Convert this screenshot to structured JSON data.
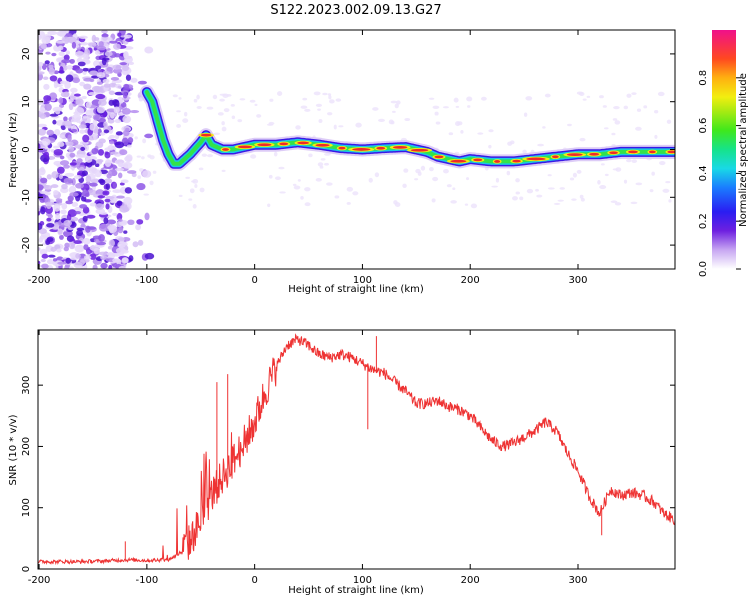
{
  "title": "S122.2023.002.09.13.G27",
  "chart_data": [
    {
      "type": "heatmap",
      "xlabel": "Height of straight line (km)",
      "ylabel": "Frequency (Hz)",
      "xlim": [
        -201,
        390
      ],
      "ylim": [
        -25,
        25
      ],
      "xticks": [
        -200,
        -100,
        0,
        100,
        200,
        300
      ],
      "yticks": [
        -20,
        -10,
        0,
        10,
        20
      ],
      "colorbar": {
        "label": "Normalized spectral amplitude",
        "range": [
          0,
          1
        ],
        "ticks": [
          "0.0",
          "0.2",
          "0.4",
          "0.6",
          "0.8"
        ],
        "tick_values": [
          0,
          0.2,
          0.4,
          0.6,
          0.8
        ]
      },
      "ridge": {
        "x": [
          -100,
          -95,
          -90,
          -85,
          -80,
          -75,
          -70,
          -60,
          -50,
          -45,
          -40,
          -30,
          -20,
          -10,
          0,
          20,
          40,
          60,
          80,
          100,
          120,
          140,
          150,
          160,
          170,
          180,
          190,
          200,
          220,
          240,
          260,
          280,
          300,
          320,
          340,
          360,
          380,
          390
        ],
        "y": [
          12,
          10,
          6,
          2,
          -1,
          -3,
          -3,
          -1,
          1.5,
          3,
          1,
          0,
          0,
          0.5,
          1,
          1,
          1.5,
          1,
          0.3,
          0,
          0.3,
          0.5,
          0,
          -0.5,
          -1.5,
          -2,
          -2.5,
          -2,
          -2.5,
          -2.5,
          -2,
          -1.5,
          -1,
          -1,
          -0.5,
          -0.5,
          -0.5,
          -0.5
        ]
      }
    },
    {
      "type": "line",
      "xlabel": "Height of straight line (km)",
      "ylabel": "SNR (10 * v/v)",
      "xlim": [
        -201,
        390
      ],
      "ylim": [
        0,
        390
      ],
      "xticks": [
        -200,
        -100,
        0,
        100,
        200,
        300
      ],
      "yticks": [
        0,
        100,
        200,
        300
      ],
      "color": "#ee3333",
      "envelope": {
        "x": [
          -201,
          -180,
          -160,
          -140,
          -120,
          -100,
          -80,
          -70,
          -60,
          -50,
          -40,
          -30,
          -20,
          -10,
          0,
          10,
          20,
          30,
          40,
          50,
          60,
          70,
          80,
          90,
          100,
          110,
          120,
          130,
          140,
          150,
          160,
          170,
          180,
          190,
          200,
          210,
          220,
          230,
          240,
          250,
          260,
          270,
          280,
          290,
          300,
          310,
          320,
          330,
          340,
          350,
          360,
          370,
          380,
          390
        ],
        "y": [
          12,
          12,
          12,
          13,
          15,
          14,
          15,
          25,
          45,
          80,
          120,
          150,
          175,
          205,
          240,
          290,
          330,
          365,
          375,
          365,
          350,
          345,
          350,
          345,
          335,
          325,
          320,
          305,
          290,
          270,
          270,
          275,
          265,
          260,
          250,
          230,
          210,
          200,
          205,
          215,
          225,
          240,
          225,
          190,
          160,
          120,
          90,
          130,
          120,
          125,
          120,
          110,
          90,
          80
        ]
      },
      "spikes": [
        {
          "x": -120,
          "y": 45
        },
        {
          "x": -35,
          "y": 305
        },
        {
          "x": -25,
          "y": 318
        },
        {
          "x": 105,
          "y": 228
        },
        {
          "x": 113,
          "y": 380
        },
        {
          "x": 322,
          "y": 55
        }
      ]
    }
  ]
}
